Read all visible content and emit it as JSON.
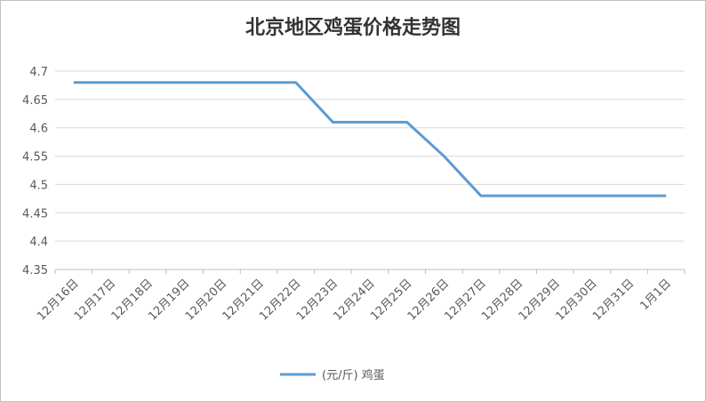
{
  "chart_data": {
    "type": "line",
    "title": "北京地区鸡蛋价格走势图",
    "categories": [
      "12月16日",
      "12月17日",
      "12月18日",
      "12月19日",
      "12月20日",
      "12月21日",
      "12月22日",
      "12月23日",
      "12月24日",
      "12月25日",
      "12月26日",
      "12月27日",
      "12月28日",
      "12月29日",
      "12月30日",
      "12月31日",
      "1月1日"
    ],
    "series": [
      {
        "name": "(元/斤) 鸡蛋",
        "color": "#5b9bd5",
        "values": [
          4.68,
          4.68,
          4.68,
          4.68,
          4.68,
          4.68,
          4.68,
          4.61,
          4.61,
          4.61,
          4.55,
          4.48,
          4.48,
          4.48,
          4.48,
          4.48,
          4.48
        ]
      }
    ],
    "ylim": [
      4.35,
      4.7
    ],
    "yticks": [
      4.35,
      4.4,
      4.45,
      4.5,
      4.55,
      4.6,
      4.65,
      4.7
    ],
    "grid": true,
    "legend": "bottom"
  }
}
